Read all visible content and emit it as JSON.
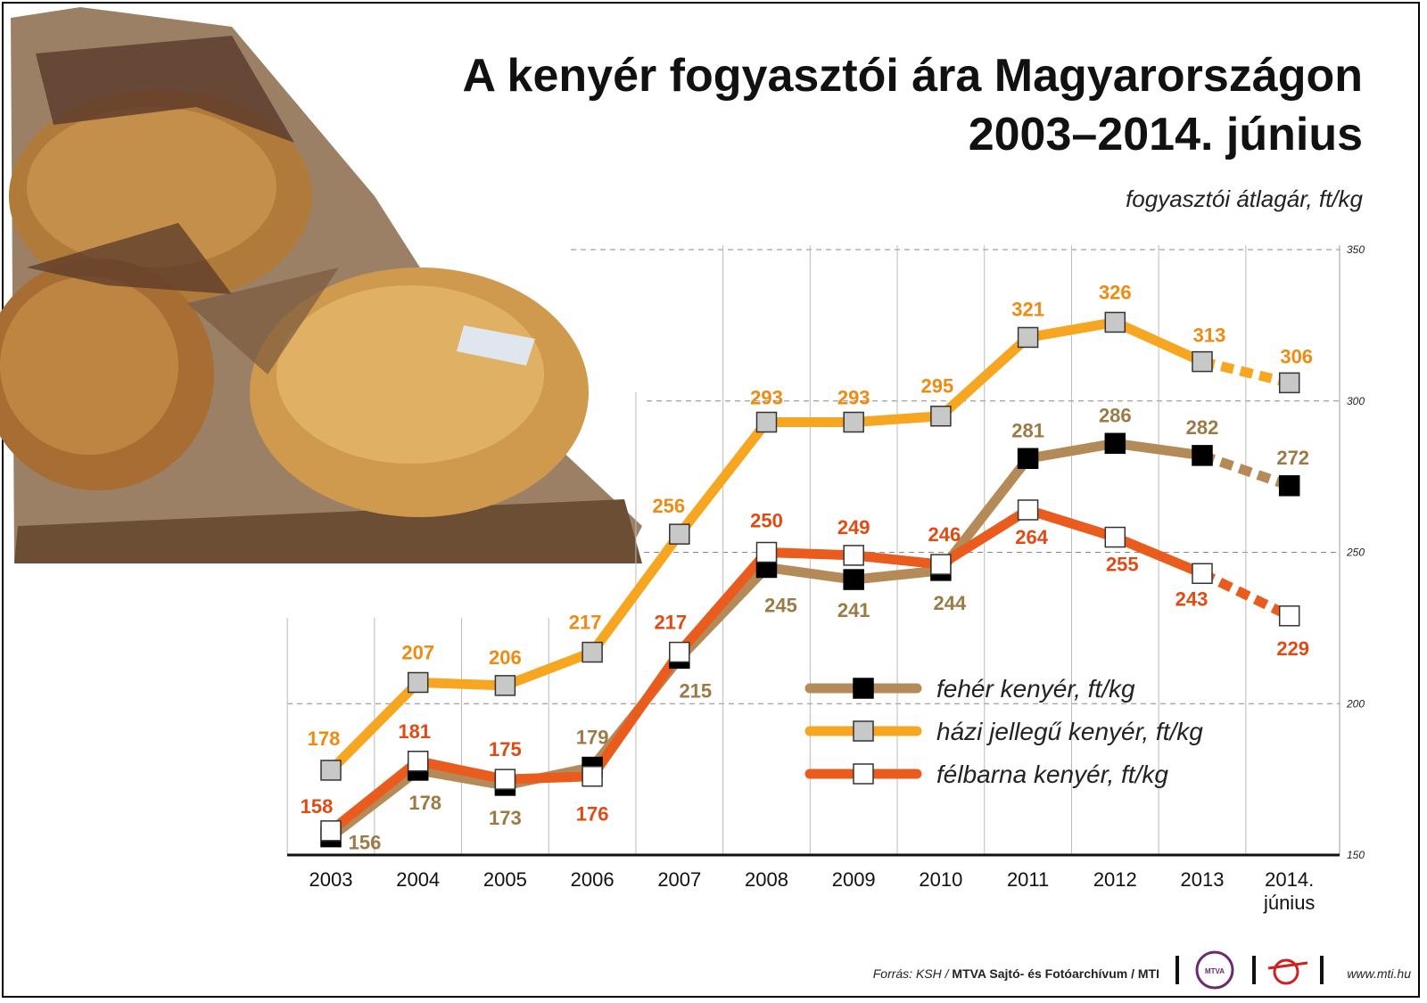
{
  "chart_data": {
    "type": "line",
    "title": "A kenyér fogyasztói ára Magyarországon",
    "subtitle": "2003–2014. június",
    "unit_label": "fogyasztói átlagár, ft/kg",
    "categories": [
      "2003",
      "2004",
      "2005",
      "2006",
      "2007",
      "2008",
      "2009",
      "2010",
      "2011",
      "2012",
      "2013",
      "2014. június"
    ],
    "ylim": [
      150,
      350
    ],
    "yticks": [
      150,
      200,
      250,
      300,
      350
    ],
    "grid": true,
    "legend_position": "bottom-right",
    "series": [
      {
        "name": "fehér kenyér, ft/kg",
        "color": "#b58a59",
        "marker": "black-square",
        "values": [
          156,
          178,
          173,
          179,
          215,
          245,
          241,
          244,
          281,
          286,
          282,
          272
        ]
      },
      {
        "name": "házi jellegű kenyér, ft/kg",
        "color": "#f7a622",
        "marker": "gray-square",
        "values": [
          178,
          207,
          206,
          217,
          256,
          293,
          293,
          295,
          321,
          326,
          313,
          306
        ]
      },
      {
        "name": "félbarna kenyér, ft/kg",
        "color": "#ea5b1e",
        "marker": "white-square",
        "values": [
          158,
          181,
          175,
          176,
          217,
          250,
          249,
          246,
          264,
          255,
          243,
          229
        ]
      }
    ]
  },
  "label_colors": {
    "feher": "#9c7a45",
    "hazi": "#ef8a12",
    "felbarna": "#e24a14"
  },
  "footer": {
    "source_prefix": "Forrás: KSH / ",
    "source_bold": "MTVA Sajtó- és Fotóarchívum / MTI",
    "mtva_logo_text": "MTVA",
    "website": "www.mti.hu"
  }
}
